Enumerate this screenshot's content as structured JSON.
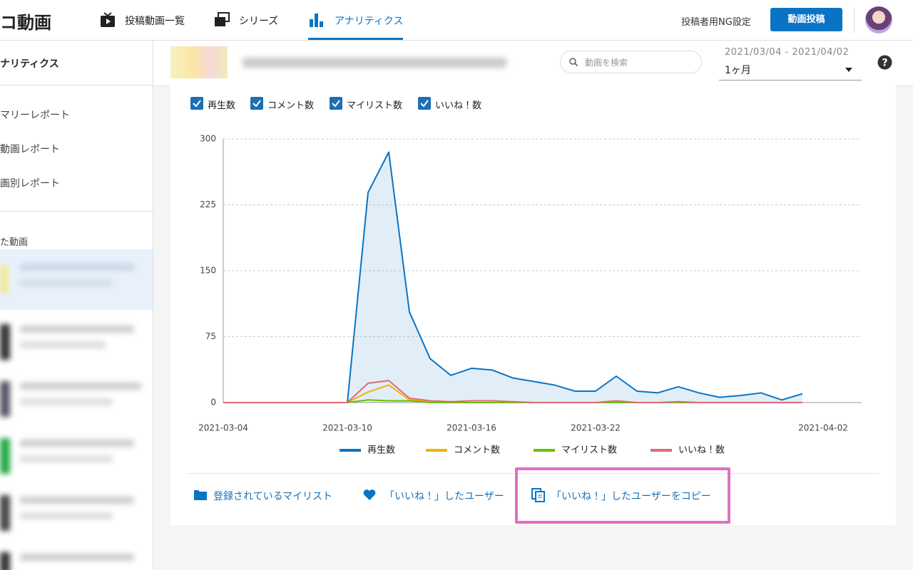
{
  "header": {
    "logo": "コ動画",
    "nav": [
      "投稿動画一覧",
      "シリーズ",
      "アナリティクス"
    ],
    "ng_settings": "投稿者用NG設定",
    "upload_button": "動画投稿"
  },
  "sidebar": {
    "title": "ナリティクス",
    "menu": [
      "マリーレポート",
      "動画レポート",
      "画別レポート"
    ],
    "section": "た動画"
  },
  "toolbar": {
    "search_placeholder": "動画を検索",
    "date_range": "2021/03/04 - 2021/04/02",
    "period": "1ヶ月"
  },
  "checkboxes": [
    "再生数",
    "コメント数",
    "マイリスト数",
    "いいね！数"
  ],
  "chart_data": {
    "type": "line",
    "categories": [
      "2021-03-04",
      null,
      null,
      null,
      null,
      null,
      "2021-03-10",
      null,
      null,
      null,
      null,
      null,
      "2021-03-16",
      null,
      null,
      null,
      null,
      null,
      "2021-03-22",
      null,
      null,
      null,
      null,
      null,
      null,
      null,
      null,
      null,
      null,
      "2021-04-02"
    ],
    "series": [
      {
        "name": "再生数",
        "color": "#0a74c4",
        "area": true,
        "values": [
          0,
          0,
          0,
          0,
          0,
          0,
          0,
          239,
          285,
          103,
          50,
          31,
          39,
          37,
          28,
          24,
          20,
          13,
          13,
          30,
          13,
          11,
          18,
          11,
          6,
          8,
          11,
          3,
          10,
          null
        ]
      },
      {
        "name": "コメント数",
        "color": "#f0b400",
        "values": [
          0,
          0,
          0,
          0,
          0,
          0,
          0,
          12,
          20,
          3,
          1,
          0,
          0,
          0,
          0,
          0,
          0,
          0,
          0,
          1,
          0,
          0,
          0,
          0,
          0,
          0,
          0,
          0,
          0,
          null
        ]
      },
      {
        "name": "マイリスト数",
        "color": "#6cbf00",
        "values": [
          0,
          0,
          0,
          0,
          0,
          0,
          0,
          3,
          2,
          2,
          0,
          0,
          0,
          0,
          0,
          0,
          0,
          0,
          0,
          0,
          0,
          0,
          0,
          0,
          0,
          0,
          0,
          0,
          0,
          null
        ]
      },
      {
        "name": "いいね！数",
        "color": "#e06b74",
        "values": [
          0,
          0,
          0,
          0,
          0,
          0,
          0,
          22,
          25,
          5,
          2,
          1,
          2,
          2,
          1,
          0,
          0,
          0,
          0,
          2,
          0,
          0,
          1,
          0,
          0,
          0,
          0,
          0,
          0,
          null
        ]
      }
    ],
    "ylim": [
      0,
      300
    ],
    "yticks": [
      0,
      75,
      150,
      225,
      300
    ],
    "grid": true,
    "legend": "bottom"
  },
  "links": [
    "登録されているマイリスト",
    "「いいね！」したユーザー",
    "「いいね！」したユーザーをコピー"
  ]
}
